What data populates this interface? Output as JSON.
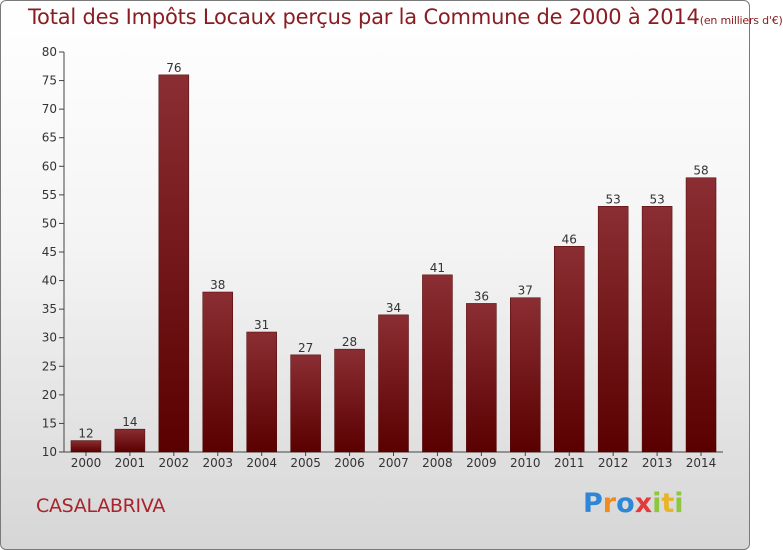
{
  "header": {
    "title": "Total des Impôts Locaux perçus par la Commune de 2000 à 2014",
    "unit": "(en milliers d'€)"
  },
  "footer": {
    "commune": "CASALABRIVA",
    "logo": "Proxiti"
  },
  "colors": {
    "bar_top": "#8b2e33",
    "bar_bottom": "#5a0000",
    "title": "#8a1d22"
  },
  "chart_data": {
    "type": "bar",
    "title": "Total des Impôts Locaux perçus par la Commune de 2000 à 2014 (en milliers d'€)",
    "xlabel": "",
    "ylabel": "",
    "categories": [
      "2000",
      "2001",
      "2002",
      "2003",
      "2004",
      "2005",
      "2006",
      "2007",
      "2008",
      "2009",
      "2010",
      "2011",
      "2012",
      "2013",
      "2014"
    ],
    "values": [
      12,
      14,
      76,
      38,
      31,
      27,
      28,
      34,
      41,
      36,
      37,
      46,
      53,
      53,
      58
    ],
    "ylim": [
      10,
      80
    ],
    "yticks": [
      10,
      15,
      20,
      25,
      30,
      35,
      40,
      45,
      50,
      55,
      60,
      65,
      70,
      75,
      80
    ],
    "grid": false,
    "legend": "none"
  }
}
